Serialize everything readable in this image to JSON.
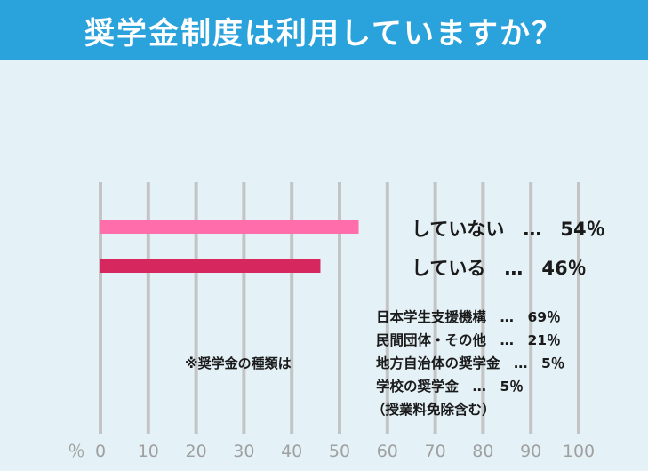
{
  "header": {
    "title": "奨学金制度は利用していますか？"
  },
  "chart_data": {
    "type": "bar",
    "orientation": "horizontal",
    "categories": [
      "していない",
      "している"
    ],
    "values": [
      54,
      46
    ],
    "value_labels": [
      "していない　…　54％",
      "している　…　46％"
    ],
    "bar_colors": [
      "#ff6eaa",
      "#d7275f"
    ],
    "xlim": [
      0,
      100
    ],
    "xticks": [
      "0",
      "10",
      "20",
      "30",
      "40",
      "50",
      "60",
      "70",
      "80",
      "90",
      "100"
    ],
    "x_unit": "％",
    "grid": "vertical",
    "grid_color": "#c4c4c4"
  },
  "notes": {
    "title": "※奨学金の種類は",
    "items": [
      "日本学生支援機構　…　69％",
      "民間団体・その他　…　21％",
      "地方自治体の奨学金　…　5％",
      "学校の奨学金　…　5％",
      "（授業料免除含む）"
    ]
  },
  "colors": {
    "header_bg": "#2aa2dc",
    "page_bg": "#e4f2f8",
    "tick_text": "#a0a0a0"
  }
}
